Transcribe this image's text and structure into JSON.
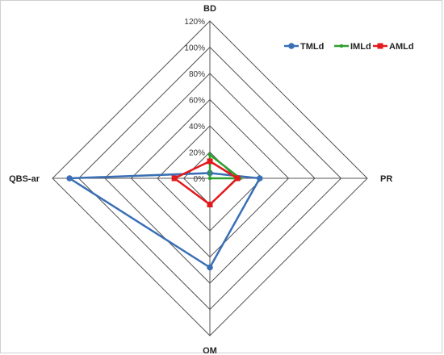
{
  "chart_data": {
    "type": "radar",
    "title": "",
    "axes": [
      "BD",
      "PR",
      "OM",
      "QBS-ar"
    ],
    "r_ticks": [
      "0%",
      "20%",
      "40%",
      "60%",
      "80%",
      "100%",
      "120%"
    ],
    "r_range": [
      0,
      120
    ],
    "grid": true,
    "legend_position": "top-right",
    "series": [
      {
        "name": "TMLd",
        "color": "#3a6fb5",
        "values": [
          4,
          38,
          68,
          107
        ]
      },
      {
        "name": "IMLd",
        "color": "#2ca02c",
        "values": [
          18,
          23,
          0,
          0
        ]
      },
      {
        "name": "AMLd",
        "color": "#e31a1c",
        "values": [
          13,
          21,
          20,
          27
        ]
      }
    ]
  }
}
